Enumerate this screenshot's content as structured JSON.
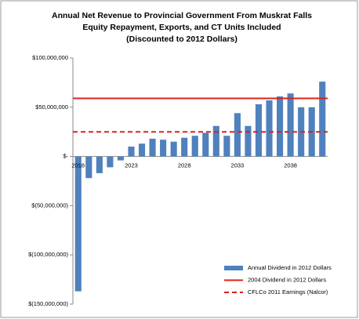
{
  "chart_data": {
    "type": "bar",
    "title": [
      "Annual Net Revenue to Provincial Government  From Muskrat Falls",
      "Equity Repayment, Exports, and CT Units Included",
      "(Discounted to 2012 Dollars)"
    ],
    "categories": [
      "2018",
      null,
      null,
      null,
      null,
      "2023",
      null,
      null,
      null,
      null,
      "2028",
      null,
      null,
      null,
      null,
      "2033",
      null,
      null,
      null,
      null,
      "2038",
      null,
      null,
      null
    ],
    "series": [
      {
        "name": "Annual Dividend in 2012 Dollars",
        "color": "#4f81bd",
        "values": [
          -137000000,
          -22000000,
          -17000000,
          -11000000,
          -4000000,
          10000000,
          13000000,
          18000000,
          17000000,
          15000000,
          19000000,
          21000000,
          24000000,
          31000000,
          21000000,
          44000000,
          31000000,
          53000000,
          57000000,
          61000000,
          64000000,
          50000000,
          50000000,
          76000000
        ]
      }
    ],
    "reference_lines": [
      {
        "name": "2004 Dividend in 2012 Dollars",
        "value": 59000000,
        "color": "#e0201b",
        "dashed": false
      },
      {
        "name": "CFLCo 2011 Earnings (Nalcor)",
        "value": 25000000,
        "color": "#e0201b",
        "dashed": true
      }
    ],
    "ylim": [
      -150000000,
      100000000
    ],
    "yticks": [
      {
        "value": -150000000,
        "label": "$(150,000,000)"
      },
      {
        "value": -100000000,
        "label": "$(100,000,000)"
      },
      {
        "value": -50000000,
        "label": "$(50,000,000)"
      },
      {
        "value": 0,
        "label": "$-"
      },
      {
        "value": 50000000,
        "label": "$50,000,000"
      },
      {
        "value": 100000000,
        "label": "$100,000,000"
      }
    ],
    "legend": "lower right",
    "grid": false
  }
}
